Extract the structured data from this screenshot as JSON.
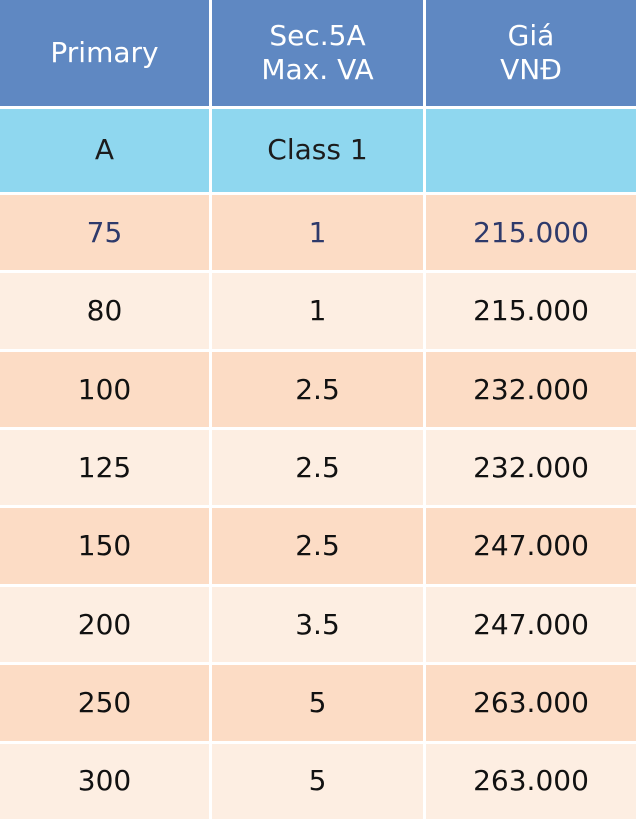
{
  "header": {
    "col1": "Primary",
    "col2_line1": "Sec.5A",
    "col2_line2": "Max. VA",
    "col3_line1": "Giá",
    "col3_line2": "VNĐ"
  },
  "units": {
    "col1": "A",
    "col2": "Class 1",
    "col3": ""
  },
  "rows": [
    {
      "primary": "75",
      "va": "1",
      "price": "215.000"
    },
    {
      "primary": "80",
      "va": "1",
      "price": "215.000"
    },
    {
      "primary": "100",
      "va": "2.5",
      "price": "232.000"
    },
    {
      "primary": "125",
      "va": "2.5",
      "price": "232.000"
    },
    {
      "primary": "150",
      "va": "2.5",
      "price": "247.000"
    },
    {
      "primary": "200",
      "va": "3.5",
      "price": "247.000"
    },
    {
      "primary": "250",
      "va": "5",
      "price": "263.000"
    },
    {
      "primary": "300",
      "va": "5",
      "price": "263.000"
    }
  ],
  "colors": {
    "header_bg": "#5f88c2",
    "unit_row_bg": "#8fd7ef",
    "row_dark": "#fcdcc5",
    "row_light": "#fdeee2"
  }
}
